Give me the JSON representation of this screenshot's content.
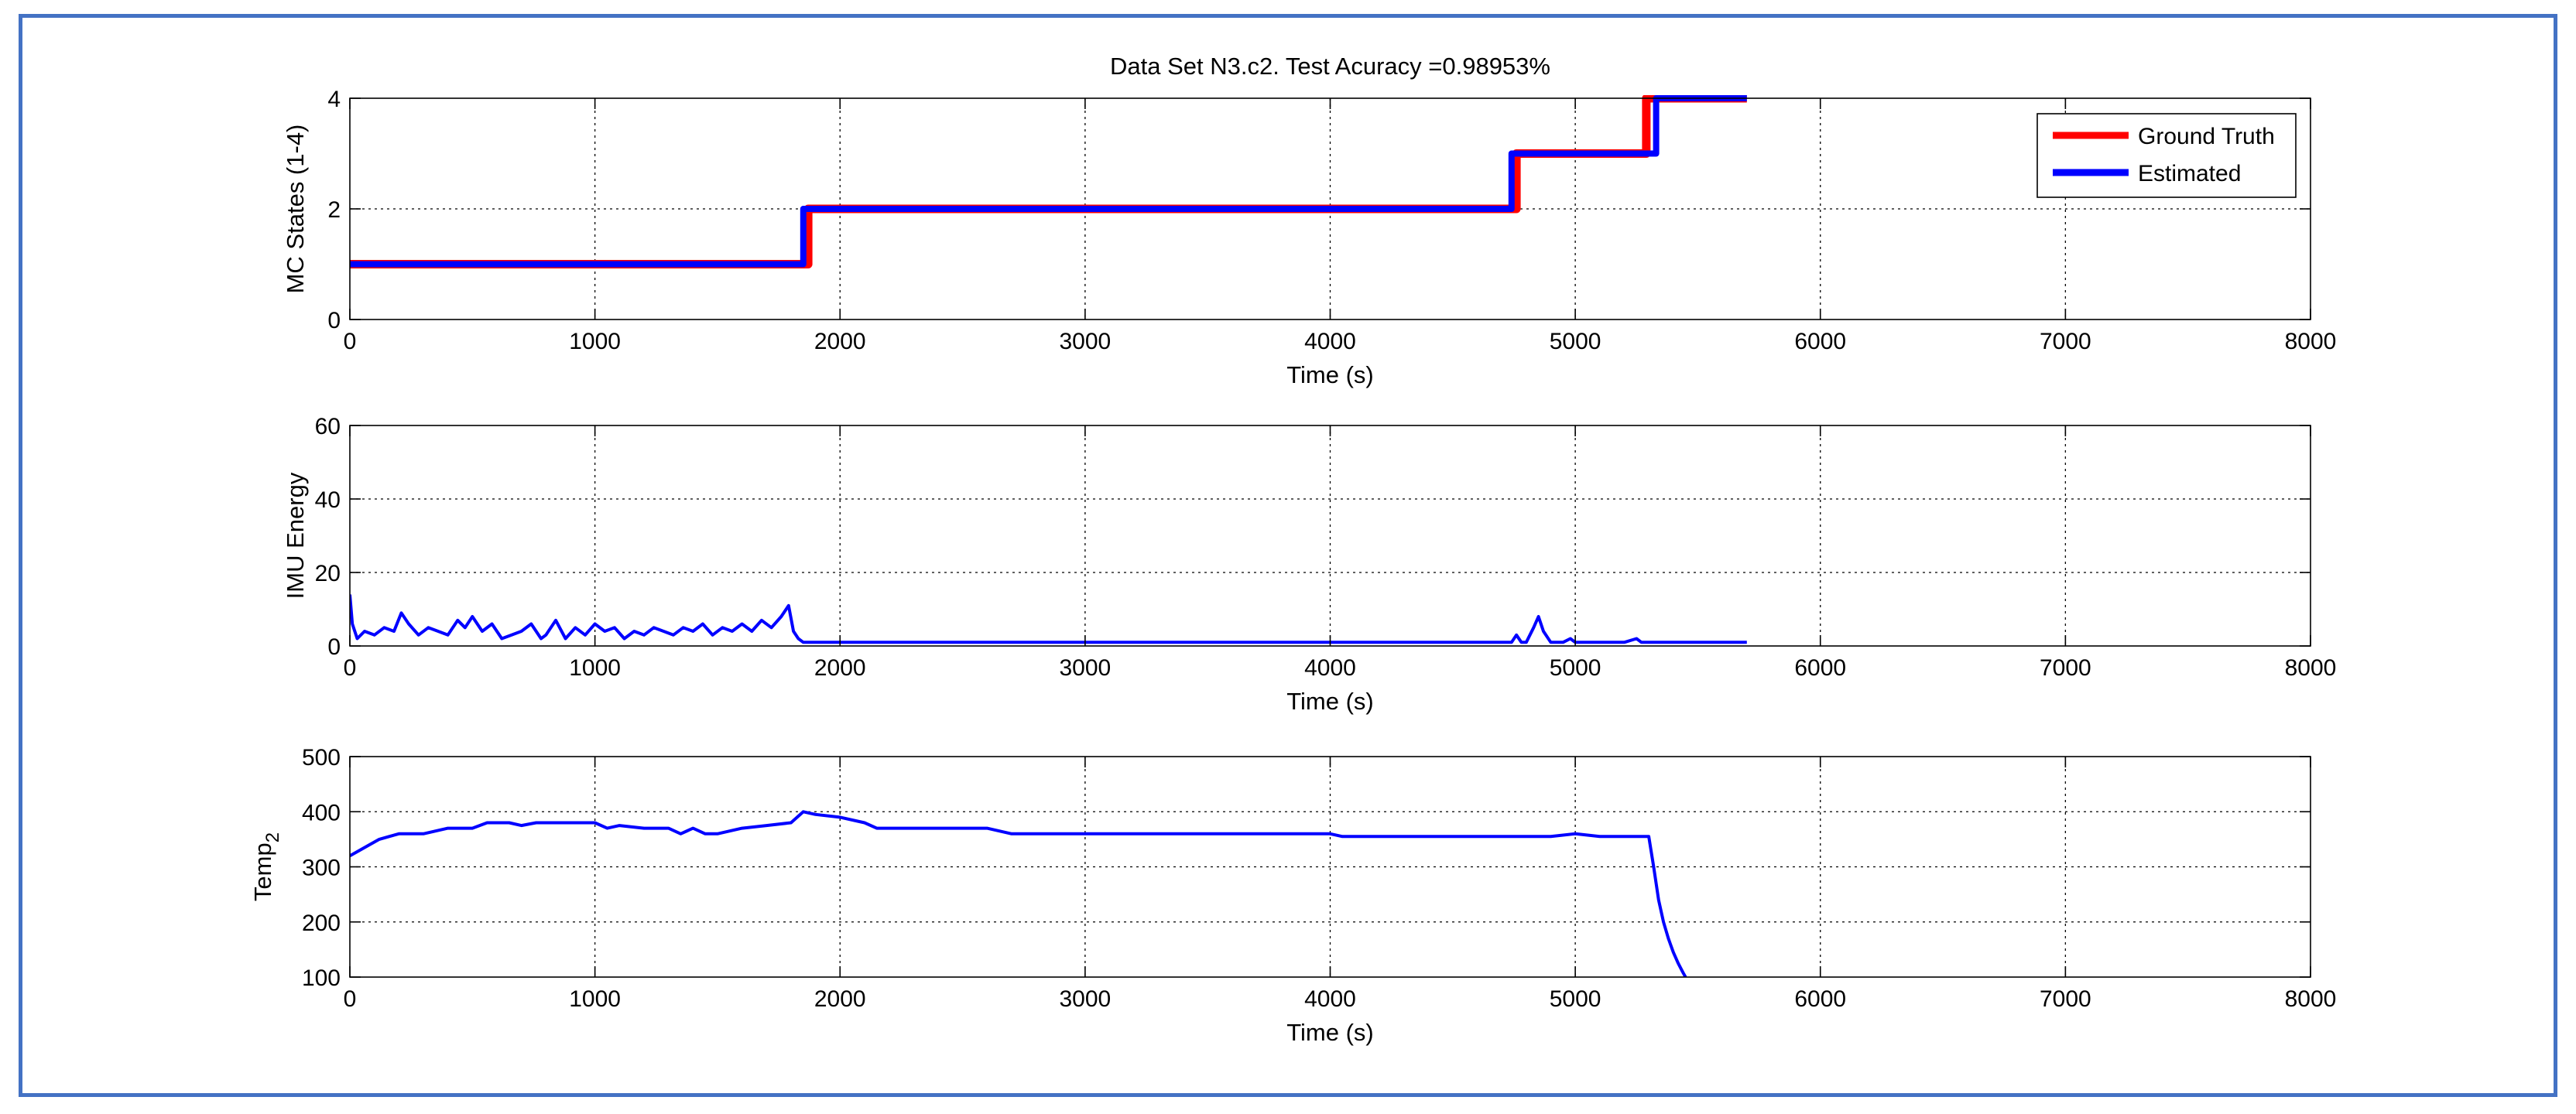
{
  "figure": {
    "title": "Data Set N3.c2. Test Acuracy =0.98953%",
    "frame_color": "#4472c4"
  },
  "chart_data": [
    {
      "type": "line",
      "xlabel": "Time (s)",
      "ylabel": "MC States (1-4)",
      "xlim": [
        0,
        8000
      ],
      "ylim": [
        0,
        4
      ],
      "xticks": [
        0,
        1000,
        2000,
        3000,
        4000,
        5000,
        6000,
        7000,
        8000
      ],
      "yticks": [
        0,
        2,
        4
      ],
      "grid": true,
      "legend": "top-right",
      "series": [
        {
          "name": "Ground Truth",
          "color": "#ff0000",
          "x": [
            0,
            1870,
            1870,
            4760,
            4760,
            5290,
            5290,
            5700
          ],
          "y": [
            1,
            1,
            2,
            2,
            3,
            3,
            4,
            4
          ]
        },
        {
          "name": "Estimated",
          "color": "#0000ff",
          "x": [
            0,
            1850,
            1850,
            4740,
            4740,
            5330,
            5330,
            5700
          ],
          "y": [
            1,
            1,
            2,
            2,
            3,
            3,
            4,
            4
          ]
        }
      ]
    },
    {
      "type": "line",
      "xlabel": "Time (s)",
      "ylabel": "IMU Energy",
      "xlim": [
        0,
        8000
      ],
      "ylim": [
        0,
        60
      ],
      "xticks": [
        0,
        1000,
        2000,
        3000,
        4000,
        5000,
        6000,
        7000,
        8000
      ],
      "yticks": [
        0,
        20,
        40,
        60
      ],
      "grid": true,
      "series": [
        {
          "color": "#0000ff",
          "x": [
            0,
            10,
            30,
            60,
            100,
            140,
            180,
            210,
            240,
            280,
            320,
            360,
            400,
            440,
            470,
            500,
            540,
            580,
            620,
            660,
            700,
            740,
            780,
            800,
            840,
            880,
            920,
            960,
            1000,
            1040,
            1080,
            1120,
            1160,
            1200,
            1240,
            1280,
            1320,
            1360,
            1400,
            1440,
            1480,
            1520,
            1560,
            1600,
            1640,
            1680,
            1720,
            1760,
            1790,
            1810,
            1830,
            1850,
            1900,
            2200,
            2600,
            3000,
            3200,
            3600,
            4000,
            4400,
            4740,
            4760,
            4780,
            4800,
            4830,
            4850,
            4870,
            4900,
            4950,
            4980,
            5000,
            5050,
            5200,
            5250,
            5270,
            5300,
            5500,
            5600,
            5650,
            5680,
            5700
          ],
          "y": [
            14,
            6,
            2,
            4,
            3,
            5,
            4,
            9,
            6,
            3,
            5,
            4,
            3,
            7,
            5,
            8,
            4,
            6,
            2,
            3,
            4,
            6,
            2,
            3,
            7,
            2,
            5,
            3,
            6,
            4,
            5,
            2,
            4,
            3,
            5,
            4,
            3,
            5,
            4,
            6,
            3,
            5,
            4,
            6,
            4,
            7,
            5,
            8,
            11,
            4,
            2,
            1,
            1,
            1,
            1,
            1,
            1,
            1,
            1,
            1,
            1,
            3,
            1,
            1,
            5,
            8,
            4,
            1,
            1,
            2,
            1,
            1,
            1,
            2,
            1,
            1,
            1,
            1,
            1,
            1,
            1
          ]
        }
      ]
    },
    {
      "type": "line",
      "xlabel": "Time (s)",
      "ylabel": "Temp",
      "ylabel_sub": "2",
      "xlim": [
        0,
        8000
      ],
      "ylim": [
        100,
        500
      ],
      "xticks": [
        0,
        1000,
        2000,
        3000,
        4000,
        5000,
        6000,
        7000,
        8000
      ],
      "yticks": [
        100,
        200,
        300,
        400,
        500
      ],
      "grid": true,
      "series": [
        {
          "color": "#0000ff",
          "x": [
            0,
            40,
            80,
            120,
            160,
            200,
            300,
            400,
            500,
            560,
            650,
            700,
            760,
            900,
            1000,
            1050,
            1100,
            1200,
            1300,
            1350,
            1400,
            1450,
            1500,
            1600,
            1700,
            1800,
            1850,
            1900,
            2000,
            2100,
            2150,
            2300,
            2600,
            2700,
            2800,
            3200,
            3600,
            4000,
            4050,
            4150,
            4300,
            4600,
            4900,
            5000,
            5100,
            5200,
            5300,
            5320,
            5340,
            5360,
            5380,
            5400,
            5420,
            5440,
            5450
          ],
          "y": [
            320,
            330,
            340,
            350,
            355,
            360,
            360,
            370,
            370,
            380,
            380,
            375,
            380,
            380,
            380,
            370,
            375,
            370,
            370,
            360,
            370,
            360,
            360,
            370,
            375,
            380,
            400,
            395,
            390,
            380,
            370,
            370,
            370,
            360,
            360,
            360,
            360,
            360,
            355,
            355,
            355,
            355,
            355,
            360,
            355,
            355,
            355,
            300,
            240,
            200,
            170,
            145,
            125,
            108,
            100
          ]
        }
      ]
    }
  ]
}
